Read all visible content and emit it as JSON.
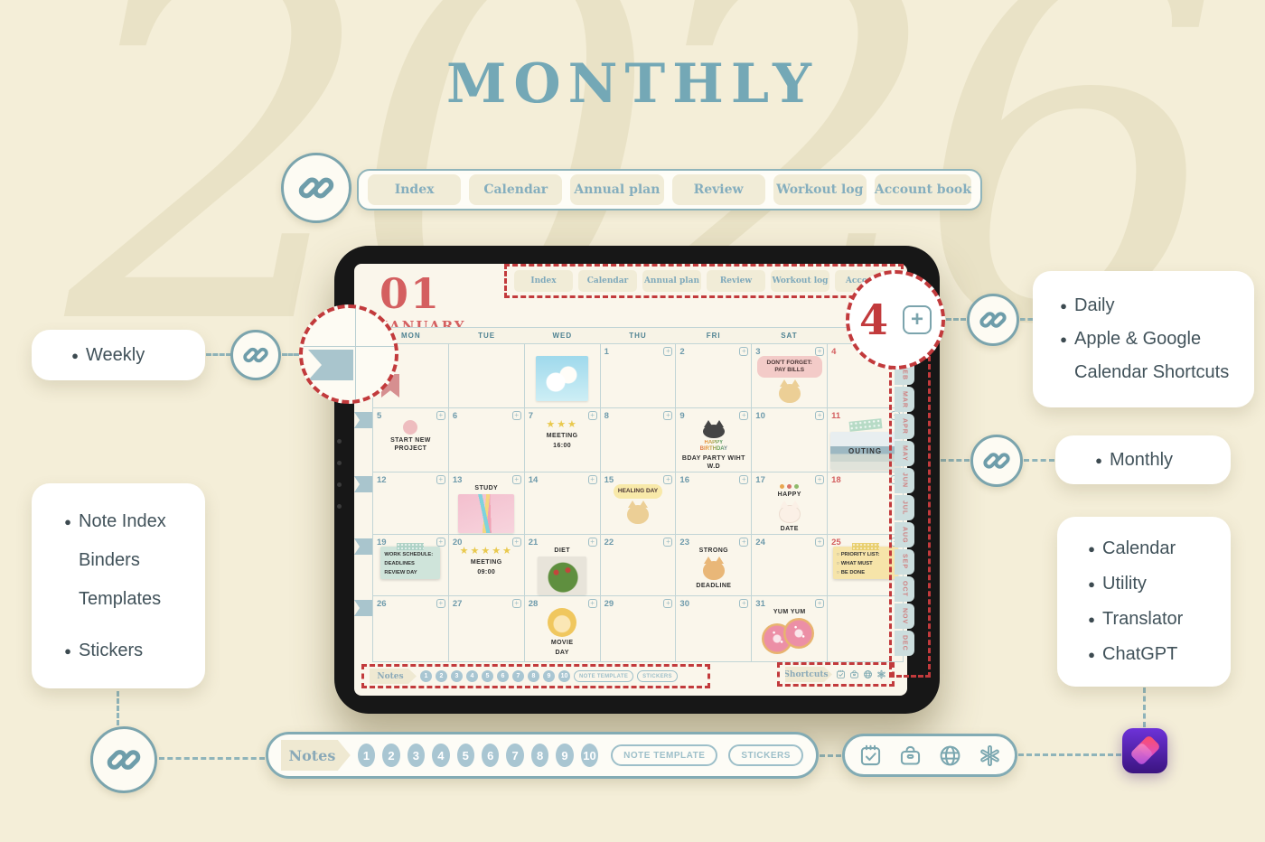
{
  "colors": {
    "background": "#f4eed8",
    "title_teal": "#74a8b6",
    "coral_red": "#d45f60",
    "dashed_red": "#c23a3c",
    "teal_accent": "#7ba4ad",
    "tab_beige": "#f1ecd7",
    "number_circle_blue": "#a9c6d2",
    "shortcuts_purple": "#4b1fa3"
  },
  "header": {
    "title": "MONTHLY",
    "watermark_year": "2026"
  },
  "top_nav": {
    "tabs": [
      "Index",
      "Calendar",
      "Annual plan",
      "Review",
      "Workout log",
      "Account book"
    ]
  },
  "tablet": {
    "month_number": "01",
    "month_name": "JANUARY",
    "nav_tabs": [
      "Index",
      "Calendar",
      "Annual plan",
      "Review",
      "Workout log",
      "Account"
    ],
    "weekdays": [
      "MON",
      "TUE",
      "WED",
      "THU",
      "FRI",
      "SAT",
      "SUN"
    ],
    "month_tabs": [
      "FEB",
      "MAR",
      "APR",
      "MAY",
      "JUN",
      "JUL",
      "AUG",
      "SEP",
      "OCT",
      "NOV",
      "DEC"
    ],
    "notes_bar": {
      "label": "Notes",
      "page_numbers": [
        "1",
        "2",
        "3",
        "4",
        "5",
        "6",
        "7",
        "8",
        "9",
        "10"
      ],
      "note_template_label": "NOTE TEMPLATE",
      "stickers_label": "STICKERS"
    },
    "shortcuts_bar": {
      "label": "Shortcuts",
      "icons": [
        "calendar-check-icon",
        "bag-icon",
        "globe-icon",
        "chatgpt-icon"
      ]
    }
  },
  "calendar_weeks": [
    [
      {
        "stk": [
          {
            "t": "bookmark"
          }
        ]
      },
      {},
      {
        "stk": [
          {
            "t": "photo-sky"
          }
        ]
      },
      {
        "day": "1"
      },
      {
        "day": "2"
      },
      {
        "day": "3",
        "stk": [
          {
            "t": "bubble-pink",
            "v": "DON'T FORGET: PAY BILLS"
          },
          {
            "t": "cat-tan"
          }
        ]
      },
      {
        "day": "4",
        "red": true
      }
    ],
    [
      {
        "day": "5",
        "stk": [
          {
            "t": "dot-pink"
          },
          {
            "t": "htext",
            "v": "START NEW PROJECT"
          }
        ]
      },
      {
        "day": "6"
      },
      {
        "day": "7",
        "stk": [
          {
            "t": "stars",
            "v": "★★★"
          },
          {
            "t": "htext",
            "v": "MEETING"
          },
          {
            "t": "htext",
            "v": "16:00"
          }
        ]
      },
      {
        "day": "8"
      },
      {
        "day": "9",
        "stk": [
          {
            "t": "cat-black"
          },
          {
            "t": "rainbow",
            "v": "HAPPY BIRTHDAY"
          },
          {
            "t": "htext",
            "v": "BDAY PARTY WIHT W.D"
          }
        ]
      },
      {
        "day": "10"
      },
      {
        "day": "11",
        "red": true,
        "stk": [
          {
            "t": "tape-green"
          },
          {
            "t": "photo-sea",
            "v": "OUTING"
          }
        ]
      }
    ],
    [
      {
        "day": "12"
      },
      {
        "day": "13",
        "stk": [
          {
            "t": "htext",
            "v": "STUDY"
          },
          {
            "t": "photo-study"
          }
        ]
      },
      {
        "day": "14"
      },
      {
        "day": "15",
        "stk": [
          {
            "t": "bubble-yellow",
            "v": "HEALING DAY"
          },
          {
            "t": "cat-tan"
          }
        ]
      },
      {
        "day": "16"
      },
      {
        "day": "17",
        "stk": [
          {
            "t": "flowers"
          },
          {
            "t": "htext",
            "v": "HAPPY"
          },
          {
            "t": "cat-white"
          },
          {
            "t": "htext",
            "v": "DATE"
          }
        ]
      },
      {
        "day": "18",
        "red": true
      }
    ],
    [
      {
        "day": "19",
        "stk": [
          {
            "t": "sticky-g",
            "lines": [
              "WORK SCHEDULE:",
              "DEADLINES",
              "REVIEW DAY"
            ]
          }
        ]
      },
      {
        "day": "20",
        "stk": [
          {
            "t": "stars",
            "v": "★★★★★"
          },
          {
            "t": "htext",
            "v": "MEETING"
          },
          {
            "t": "htext",
            "v": "09:00"
          }
        ]
      },
      {
        "day": "21",
        "stk": [
          {
            "t": "htext",
            "v": "DIET"
          },
          {
            "t": "photo-salad"
          }
        ]
      },
      {
        "day": "22"
      },
      {
        "day": "23",
        "stk": [
          {
            "t": "htext",
            "v": "STRONG"
          },
          {
            "t": "cat-orange"
          },
          {
            "t": "htext",
            "v": "DEADLINE"
          }
        ]
      },
      {
        "day": "24"
      },
      {
        "day": "25",
        "red": true,
        "stk": [
          {
            "t": "sticky-y",
            "lines": [
              "PRIORITY LIST:",
              "WHAT MUST",
              "BE DONE"
            ]
          }
        ]
      }
    ],
    [
      {
        "day": "26"
      },
      {
        "day": "27"
      },
      {
        "day": "28",
        "stk": [
          {
            "t": "lion"
          },
          {
            "t": "htext",
            "v": "MOVIE"
          },
          {
            "t": "htext",
            "v": "DAY"
          }
        ]
      },
      {
        "day": "29"
      },
      {
        "day": "30"
      },
      {
        "day": "31",
        "stk": [
          {
            "t": "htext",
            "v": "YUM YUM"
          },
          {
            "t": "photo-donuts"
          }
        ]
      },
      {}
    ]
  ],
  "magnifiers": {
    "badge_number": "4"
  },
  "callouts": {
    "weekly": {
      "label": "Weekly"
    },
    "left_list": {
      "items": [
        {
          "bullet": true,
          "label": "Note Index"
        },
        {
          "bullet": false,
          "label": "Binders"
        },
        {
          "bullet": false,
          "label": "Templates"
        },
        {
          "bullet": true,
          "label": "Stickers"
        }
      ]
    },
    "daily": {
      "items": [
        {
          "bullet": true,
          "label": "Daily"
        },
        {
          "bullet": true,
          "label": "Apple & Google"
        },
        {
          "bullet": false,
          "label": "Calendar Shortcuts"
        }
      ]
    },
    "monthly": {
      "items": [
        {
          "bullet": true,
          "label": "Monthly"
        }
      ]
    },
    "apps": {
      "items": [
        {
          "bullet": true,
          "label": "Calendar"
        },
        {
          "bullet": true,
          "label": "Utility"
        },
        {
          "bullet": true,
          "label": "Translator"
        },
        {
          "bullet": true,
          "label": "ChatGPT"
        }
      ]
    }
  },
  "bottom_bar": {
    "notes_label": "Notes",
    "numbers": [
      "1",
      "2",
      "3",
      "4",
      "5",
      "6",
      "7",
      "8",
      "9",
      "10"
    ],
    "note_template_label": "NOTE TEMPLATE",
    "stickers_label": "STICKERS"
  },
  "dock": {
    "icons": [
      "calendar-check-icon",
      "bag-icon",
      "globe-icon",
      "chatgpt-icon"
    ]
  },
  "shortcuts_app": {
    "name": "apple-shortcuts-app-icon"
  }
}
